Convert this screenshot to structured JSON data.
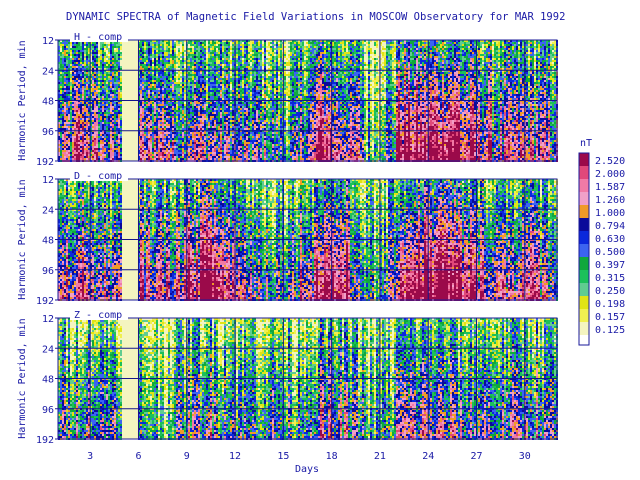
{
  "chart_data": {
    "type": "heatmap",
    "title": "DYNAMIC SPECTRA of Magnetic Field Variations in MOSCOW Observatory for MAR 1992",
    "xlabel": "Days",
    "ylabel": "Harmonic Period, min",
    "x_ticks": [
      "3",
      "6",
      "9",
      "12",
      "15",
      "18",
      "21",
      "24",
      "27",
      "30"
    ],
    "x_tick_values": [
      3,
      6,
      9,
      12,
      15,
      18,
      21,
      24,
      27,
      30
    ],
    "xlim": [
      1,
      32
    ],
    "y_ticks": [
      "12",
      "24",
      "48",
      "96",
      "192"
    ],
    "y_tick_values": [
      12,
      24,
      48,
      96,
      192
    ],
    "ylim": [
      12,
      192
    ],
    "y_scale": "log",
    "grid": true,
    "legend_placement": "right",
    "colorbar": {
      "unit": "nT",
      "levels": [
        "2.520",
        "2.000",
        "1.587",
        "1.260",
        "1.000",
        "0.794",
        "0.630",
        "0.500",
        "0.397",
        "0.315",
        "0.250",
        "0.198",
        "0.157",
        "0.125"
      ],
      "colors": [
        "#9b0a4a",
        "#e0487a",
        "#f07aa6",
        "#f0a0c8",
        "#f09a28",
        "#0a0a9a",
        "#0a28dc",
        "#3c64f0",
        "#10a83c",
        "#1cc05a",
        "#60cc90",
        "#e0e414",
        "#f0f050",
        "#f4f4c0"
      ]
    },
    "gap_days": [
      5.2
    ],
    "panels": [
      {
        "label": "H - comp",
        "activity_by_day": [
          0.55,
          0.75,
          0.6,
          0.55,
          0.0,
          0.6,
          0.7,
          0.55,
          0.65,
          0.6,
          0.55,
          0.5,
          0.5,
          0.45,
          0.4,
          0.6,
          0.85,
          0.7,
          0.6,
          0.3,
          0.45,
          0.9,
          0.85,
          0.9,
          0.95,
          0.75,
          0.7,
          0.6,
          0.65,
          0.65,
          0.6
        ]
      },
      {
        "label": "D - comp",
        "activity_by_day": [
          0.7,
          0.75,
          0.6,
          0.6,
          0.0,
          0.7,
          0.65,
          0.7,
          0.85,
          0.95,
          0.8,
          0.65,
          0.55,
          0.5,
          0.55,
          0.7,
          0.9,
          0.85,
          0.6,
          0.3,
          0.45,
          0.85,
          0.95,
          0.95,
          0.9,
          0.8,
          0.7,
          0.65,
          0.7,
          0.7,
          0.6
        ]
      },
      {
        "label": "Z - comp",
        "activity_by_day": [
          0.45,
          0.55,
          0.5,
          0.55,
          0.0,
          0.35,
          0.3,
          0.4,
          0.5,
          0.55,
          0.5,
          0.45,
          0.45,
          0.45,
          0.4,
          0.5,
          0.6,
          0.55,
          0.45,
          0.3,
          0.35,
          0.6,
          0.6,
          0.6,
          0.55,
          0.5,
          0.55,
          0.5,
          0.55,
          0.55,
          0.5
        ]
      }
    ]
  }
}
